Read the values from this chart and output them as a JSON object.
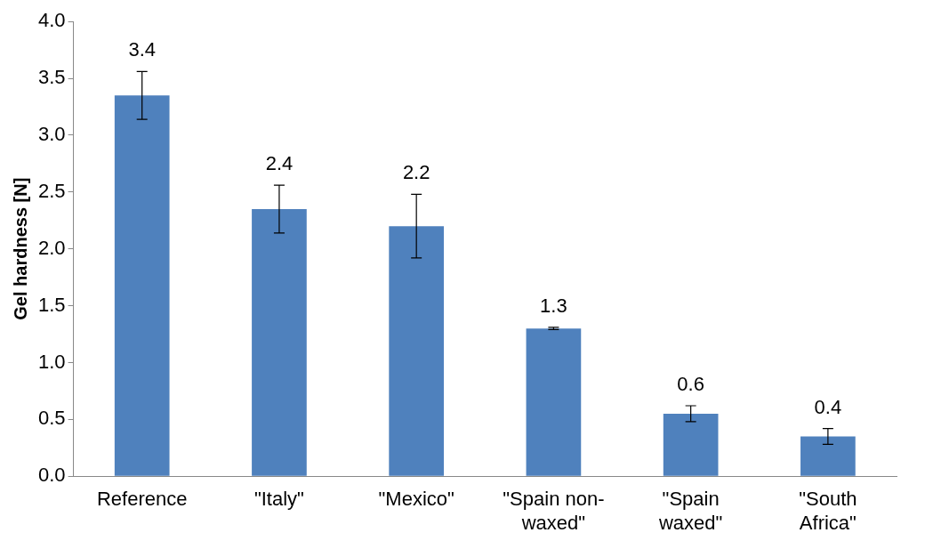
{
  "chart_data": {
    "type": "bar",
    "ylabel": "Gel hardness [N]",
    "categories": [
      "Reference",
      "\"Italy\"",
      "\"Mexico\"",
      "\"Spain non-waxed\"",
      "\"Spain waxed\"",
      "\"South Africa\""
    ],
    "values": [
      3.35,
      2.35,
      2.2,
      1.3,
      0.55,
      0.35
    ],
    "errors": [
      0.21,
      0.21,
      0.28,
      0.01,
      0.07,
      0.07
    ],
    "value_labels": [
      "3.4",
      "2.4",
      "2.2",
      "1.3",
      "0.6",
      "0.4"
    ],
    "color": "#4f81bd",
    "ylim": [
      0,
      4
    ],
    "yticks": [
      {
        "value": 0,
        "label": "0.0"
      },
      {
        "value": 0.5,
        "label": "0.5"
      },
      {
        "value": 1,
        "label": "1.0"
      },
      {
        "value": 1.5,
        "label": "1.5"
      },
      {
        "value": 2,
        "label": "2.0"
      },
      {
        "value": 2.5,
        "label": "2.5"
      },
      {
        "value": 3,
        "label": "3.0"
      },
      {
        "value": 3.5,
        "label": "3.5"
      },
      {
        "value": 4,
        "label": "4.0"
      }
    ],
    "grid": false,
    "legend": false
  }
}
